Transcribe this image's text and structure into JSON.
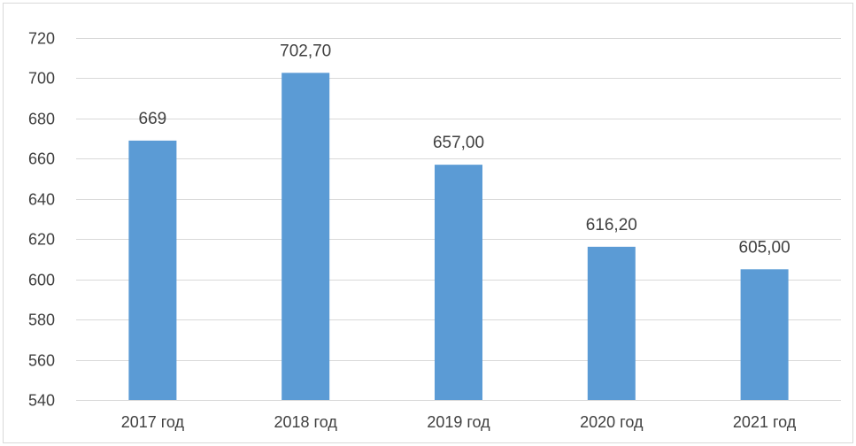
{
  "chart_data": {
    "type": "bar",
    "categories": [
      "2017 год",
      "2018 год",
      "2019 год",
      "2020 год",
      "2021 год"
    ],
    "values": [
      669,
      702.7,
      657,
      616.2,
      605
    ],
    "data_labels": [
      "669",
      "702,70",
      "657,00",
      "616,20",
      "605,00"
    ],
    "y_tick_labels": [
      "540",
      "560",
      "580",
      "600",
      "620",
      "640",
      "660",
      "680",
      "700",
      "720"
    ],
    "ylim": [
      540,
      720
    ],
    "y_step": 20,
    "title": "",
    "xlabel": "",
    "ylabel": "",
    "grid": true,
    "legend": "none",
    "bar_color": "#5b9bd5",
    "gridline_color": "#d9d9d9",
    "text_color": "#404040"
  }
}
